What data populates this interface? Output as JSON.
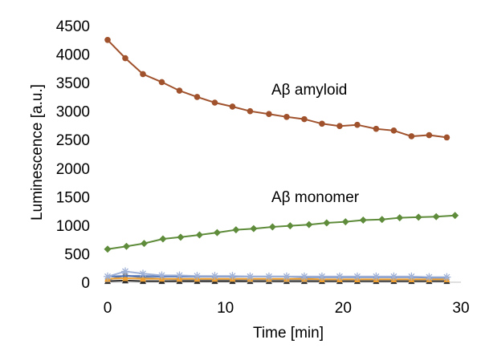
{
  "chart_data": {
    "type": "line",
    "title": "",
    "xlabel": "Time [min]",
    "ylabel": "Luminescence [a.u.]",
    "xlim": [
      0,
      30
    ],
    "ylim": [
      0,
      4500
    ],
    "xticks": [
      0,
      10,
      20,
      30
    ],
    "yticks": [
      0,
      500,
      1000,
      1500,
      2000,
      2500,
      3000,
      3500,
      4000,
      4500
    ],
    "grid": false,
    "legend": "none",
    "annotations": [
      {
        "text": "Aβ amyloid",
        "x": 18,
        "y": 3350
      },
      {
        "text": "Aβ monomer",
        "x": 18,
        "y": 1450
      }
    ],
    "x": [
      0,
      1.5,
      3,
      4.6,
      6.1,
      7.6,
      9.1,
      10.6,
      12.1,
      13.7,
      15.2,
      16.7,
      18.2,
      19.7,
      21.2,
      22.8,
      24.3,
      25.8,
      27.3,
      28.8
    ],
    "series": [
      {
        "name": "Aβ amyloid",
        "color": "#a0522d",
        "marker": "circle",
        "values": [
          4250,
          3930,
          3650,
          3510,
          3360,
          3250,
          3150,
          3080,
          3000,
          2950,
          2900,
          2860,
          2780,
          2740,
          2760,
          2690,
          2660,
          2560,
          2580,
          2540
        ]
      },
      {
        "name": "Aβ monomer",
        "color": "#5e8c3a",
        "marker": "diamond",
        "x": [
          0,
          1.6,
          3.1,
          4.7,
          6.2,
          7.8,
          9.3,
          10.9,
          12.4,
          14,
          15.5,
          17.1,
          18.6,
          20.2,
          21.7,
          23.3,
          24.8,
          26.4,
          27.9,
          29.5
        ],
        "values": [
          580,
          630,
          680,
          760,
          790,
          830,
          870,
          920,
          940,
          970,
          990,
          1010,
          1040,
          1060,
          1090,
          1100,
          1130,
          1140,
          1150,
          1170
        ]
      },
      {
        "name": "",
        "color": "#9fb1d6",
        "marker": "star",
        "values": [
          100,
          190,
          150,
          120,
          120,
          110,
          110,
          110,
          100,
          100,
          100,
          100,
          100,
          100,
          100,
          100,
          100,
          100,
          90,
          90
        ]
      },
      {
        "name": "",
        "color": "#4a6fb5",
        "marker": "none",
        "values": [
          100,
          110,
          110,
          100,
          100,
          100,
          100,
          100,
          100,
          100,
          100,
          90,
          90,
          90,
          90,
          90,
          90,
          90,
          80,
          80
        ]
      },
      {
        "name": "",
        "color": "#f0a030",
        "marker": "triangle",
        "values": [
          60,
          70,
          60,
          60,
          60,
          60,
          60,
          60,
          60,
          60,
          60,
          60,
          50,
          50,
          50,
          50,
          50,
          50,
          50,
          50
        ]
      },
      {
        "name": "",
        "color": "#8a8a8a",
        "marker": "square",
        "values": [
          40,
          120,
          80,
          60,
          50,
          50,
          50,
          50,
          40,
          40,
          40,
          40,
          40,
          40,
          40,
          40,
          40,
          40,
          40,
          40
        ]
      },
      {
        "name": "",
        "color": "#2a2a2a",
        "marker": "triangle",
        "values": [
          20,
          30,
          20,
          20,
          20,
          20,
          20,
          20,
          20,
          20,
          20,
          20,
          20,
          20,
          20,
          20,
          20,
          20,
          20,
          20
        ]
      }
    ]
  }
}
